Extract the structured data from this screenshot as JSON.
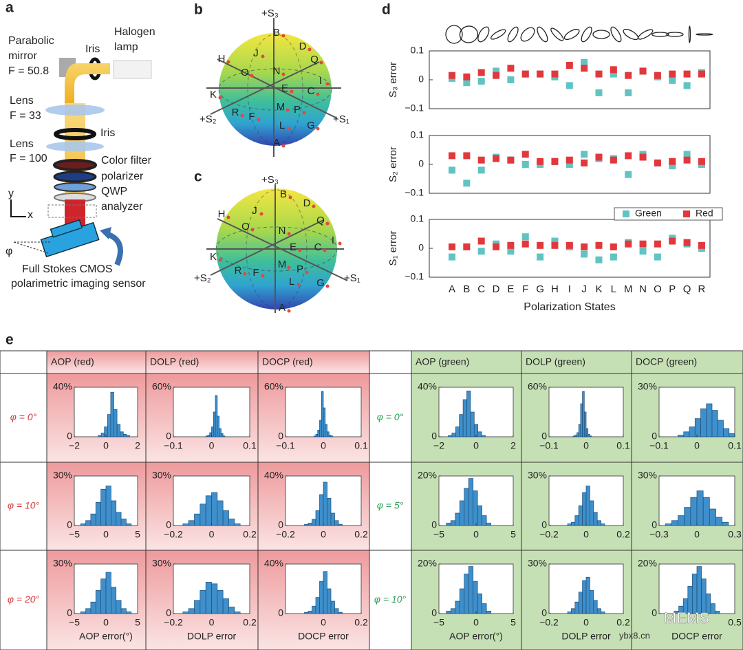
{
  "panel_labels": [
    "a",
    "b",
    "c",
    "d",
    "e"
  ],
  "setup": {
    "labels": [
      "Parabolic",
      "mirror",
      "F = 50.8",
      "Iris",
      "Halogen",
      "lamp",
      "Lens",
      "F = 33",
      "Iris",
      "Lens",
      "F = 100",
      "Color filter",
      "polarizer",
      "QWP",
      "analyzer",
      "y",
      "x",
      "φ",
      "Full Stokes CMOS",
      "polarimetric imaging sensor"
    ]
  },
  "sphere_b": {
    "axes": [
      "+S₃",
      "+S₂",
      "+S₁"
    ],
    "points": [
      "B",
      "D",
      "J",
      "H",
      "Q",
      "O",
      "N",
      "I",
      "K",
      "E",
      "C",
      "R",
      "M",
      "P",
      "F",
      "L",
      "G",
      "A"
    ]
  },
  "sphere_c": {
    "axes": [
      "+S₃",
      "+S₂",
      "+S₁"
    ],
    "points": [
      "B",
      "D",
      "J",
      "H",
      "Q",
      "O",
      "N",
      "I",
      "C",
      "E",
      "K",
      "M",
      "P",
      "R",
      "F",
      "L",
      "G",
      "A"
    ]
  },
  "table": {
    "headers": [
      "AOP (red)",
      "DOLP (red)",
      "DOCP (red)",
      "AOP (green)",
      "DOLP (green)",
      "DOCP (green)"
    ],
    "rows_red": [
      "φ = 0°",
      "φ = 10°",
      "φ = 20°"
    ],
    "rows_green": [
      "φ = 0°",
      "φ = 5°",
      "φ = 10°"
    ]
  },
  "watermark": [
    "MEMS",
    "ybx8.cn"
  ],
  "chart_data": [
    {
      "type": "dot",
      "ylabel": "S₃ error",
      "ylim": [
        -0.1,
        0.1
      ],
      "yticks": [
        0.1,
        0,
        {
          "value": -0.1,
          "label": "−0.1"
        }
      ],
      "series": [
        {
          "color": "#5fc4c2",
          "values": [
            0.005,
            -0.01,
            -0.005,
            0.03,
            0.0,
            0.02,
            0.02,
            0.01,
            -0.02,
            0.06,
            -0.045,
            0.02,
            -0.045,
            0.03,
            0.01,
            -0.002,
            -0.02,
            0.025
          ]
        },
        {
          "color": "#e2383c",
          "values": [
            0.015,
            0.01,
            0.025,
            0.015,
            0.04,
            0.02,
            0.02,
            0.02,
            0.05,
            0.04,
            0.02,
            0.035,
            0.015,
            0.03,
            0.015,
            0.02,
            0.02,
            0.02
          ]
        }
      ]
    },
    {
      "type": "dot",
      "ylabel": "S₂ error",
      "ylim": [
        -0.1,
        0.1
      ],
      "yticks": [
        0.1,
        0,
        {
          "value": -0.1,
          "label": "−0.1"
        }
      ],
      "series": [
        {
          "color": "#5fc4c2",
          "values": [
            -0.02,
            -0.065,
            -0.02,
            0.025,
            0.015,
            0.0,
            0.0,
            0.01,
            0.0,
            0.035,
            0.02,
            0.02,
            -0.035,
            0.035,
            0.005,
            -0.005,
            0.035,
            0.0
          ]
        },
        {
          "color": "#e2383c",
          "values": [
            0.03,
            0.03,
            0.015,
            0.02,
            0.015,
            0.035,
            0.01,
            0.01,
            0.015,
            0.005,
            0.025,
            0.015,
            0.03,
            0.025,
            0.005,
            0.01,
            0.015,
            0.01
          ]
        }
      ]
    },
    {
      "type": "dot",
      "ylabel": "S₁ error",
      "xlabel": "Polarization States",
      "legend": "upper right",
      "ylim": [
        -0.1,
        0.1
      ],
      "yticks": [
        0.1,
        0,
        {
          "value": -0.1,
          "label": "−0.1"
        }
      ],
      "categories": [
        "A",
        "B",
        "C",
        "D",
        "E",
        "F",
        "G",
        "H",
        "I",
        "J",
        "K",
        "L",
        "M",
        "N",
        "O",
        "P",
        "Q",
        "R"
      ],
      "series": [
        {
          "name": "Green",
          "color": "#5fc4c2",
          "values": [
            -0.03,
            0.005,
            -0.01,
            0.015,
            -0.01,
            0.04,
            -0.03,
            0.025,
            0.005,
            -0.02,
            -0.04,
            -0.03,
            0.02,
            -0.01,
            -0.03,
            0.035,
            0.015,
            0.0
          ]
        },
        {
          "name": "Red",
          "color": "#e2383c",
          "values": [
            0.005,
            0.005,
            0.025,
            0.005,
            0.01,
            0.015,
            0.01,
            0.01,
            0.01,
            0.005,
            0.01,
            0.005,
            0.015,
            0.015,
            0.015,
            0.025,
            0.02,
            0.01
          ]
        }
      ]
    },
    {
      "type": "histogram",
      "color": "#3f8fcb",
      "xlim": [
        -2,
        2
      ],
      "xticks": [
        {
          "value": -2,
          "label": "−2"
        },
        0,
        2
      ],
      "ylim": [
        0,
        40
      ],
      "yticks": [
        0,
        {
          "value": 40,
          "label": "40%"
        }
      ],
      "bins": [
        -0.5,
        -0.3,
        -0.1,
        0.1,
        0.3,
        0.5,
        0.7,
        0.9,
        1.1,
        1.3,
        1.5
      ],
      "values": [
        1,
        3,
        8,
        18,
        36,
        22,
        10,
        4,
        2,
        1
      ]
    },
    {
      "type": "histogram",
      "color": "#3f8fcb",
      "xlim": [
        -0.1,
        0.1
      ],
      "xticks": [
        {
          "value": -0.1,
          "label": "−0.1"
        },
        0,
        0.1
      ],
      "ylim": [
        0,
        60
      ],
      "yticks": [
        0,
        {
          "value": 60,
          "label": "60%"
        }
      ],
      "bins": [
        -0.015,
        -0.01,
        -0.005,
        0,
        0.005,
        0.01,
        0.015,
        0.02,
        0.025,
        0.03,
        0.035
      ],
      "values": [
        1,
        2,
        5,
        12,
        30,
        50,
        25,
        10,
        4,
        1
      ]
    },
    {
      "type": "histogram",
      "color": "#3f8fcb",
      "xlim": [
        -0.1,
        0.1
      ],
      "xticks": [
        {
          "value": -0.1,
          "label": "−0.1"
        },
        0,
        0.1
      ],
      "ylim": [
        0,
        60
      ],
      "yticks": [
        0,
        {
          "value": 60,
          "label": "60%"
        }
      ],
      "bins": [
        -0.025,
        -0.02,
        -0.015,
        -0.01,
        -0.005,
        0,
        0.005,
        0.01,
        0.015,
        0.02,
        0.025
      ],
      "values": [
        1,
        3,
        8,
        20,
        55,
        35,
        15,
        6,
        2,
        1
      ]
    },
    {
      "type": "histogram",
      "color": "#3f8fcb",
      "xlim": [
        -2,
        2
      ],
      "xticks": [
        {
          "value": -2,
          "label": "−2"
        },
        0,
        2
      ],
      "ylim": [
        0,
        40
      ],
      "yticks": [
        0,
        {
          "value": 40,
          "label": "40%"
        }
      ],
      "bins": [
        -1.5,
        -1.3,
        -1.1,
        -0.9,
        -0.7,
        -0.5,
        -0.3,
        -0.1,
        0.1,
        0.3,
        0.5
      ],
      "values": [
        1,
        3,
        8,
        18,
        30,
        37,
        20,
        10,
        4,
        1
      ]
    },
    {
      "type": "histogram",
      "color": "#3f8fcb",
      "xlim": [
        -0.1,
        0.1
      ],
      "xticks": [
        {
          "value": -0.1,
          "label": "−0.1"
        },
        0,
        0.1
      ],
      "ylim": [
        0,
        60
      ],
      "yticks": [
        0,
        {
          "value": 60,
          "label": "60%"
        }
      ],
      "bins": [
        -0.035,
        -0.03,
        -0.025,
        -0.02,
        -0.015,
        -0.01,
        -0.005,
        0,
        0.005,
        0.01,
        0.015
      ],
      "values": [
        1,
        2,
        5,
        15,
        40,
        55,
        30,
        10,
        3,
        1
      ]
    },
    {
      "type": "histogram",
      "color": "#3f8fcb",
      "xlim": [
        -0.1,
        0.1
      ],
      "xticks": [
        {
          "value": -0.1,
          "label": "−0.1"
        },
        0,
        0.1
      ],
      "ylim": [
        0,
        30
      ],
      "yticks": [
        0,
        {
          "value": 30,
          "label": "30%"
        }
      ],
      "bins": [
        -0.05,
        -0.035,
        -0.02,
        -0.005,
        0.01,
        0.025,
        0.04,
        0.055,
        0.07,
        0.085,
        0.1
      ],
      "values": [
        1,
        3,
        6,
        11,
        17,
        20,
        16,
        10,
        5,
        2
      ]
    },
    {
      "type": "histogram",
      "color": "#3f8fcb",
      "xlim": [
        -5,
        5
      ],
      "xticks": [
        {
          "value": -5,
          "label": "−5"
        },
        0,
        5
      ],
      "ylim": [
        0,
        30
      ],
      "yticks": [
        0,
        {
          "value": 30,
          "label": "30%"
        }
      ],
      "bins": [
        -4,
        -3.2,
        -2.4,
        -1.6,
        -0.8,
        0,
        0.8,
        1.6,
        2.4,
        3.2,
        4
      ],
      "values": [
        1,
        3,
        7,
        14,
        22,
        24,
        15,
        8,
        4,
        1
      ]
    },
    {
      "type": "histogram",
      "color": "#3f8fcb",
      "xlim": [
        -0.2,
        0.2
      ],
      "xticks": [
        {
          "value": -0.2,
          "label": "−0.2"
        },
        0,
        0.2
      ],
      "ylim": [
        0,
        30
      ],
      "yticks": [
        0,
        {
          "value": 30,
          "label": "30%"
        }
      ],
      "bins": [
        -0.15,
        -0.12,
        -0.09,
        -0.06,
        -0.03,
        0,
        0.03,
        0.06,
        0.09,
        0.12,
        0.15
      ],
      "values": [
        1,
        3,
        7,
        13,
        18,
        20,
        15,
        9,
        4,
        1
      ]
    },
    {
      "type": "histogram",
      "color": "#3f8fcb",
      "xlim": [
        -0.2,
        0.2
      ],
      "xticks": [
        {
          "value": -0.2,
          "label": "−0.2"
        },
        0,
        0.2
      ],
      "ylim": [
        0,
        40
      ],
      "yticks": [
        0,
        {
          "value": 40,
          "label": "40%"
        }
      ],
      "bins": [
        -0.1,
        -0.08,
        -0.06,
        -0.04,
        -0.02,
        0,
        0.02,
        0.04,
        0.06,
        0.08,
        0.1
      ],
      "values": [
        1,
        2,
        5,
        12,
        25,
        35,
        22,
        10,
        4,
        1
      ]
    },
    {
      "type": "histogram",
      "color": "#3f8fcb",
      "xlim": [
        -5,
        5
      ],
      "xticks": [
        {
          "value": -5,
          "label": "−5"
        },
        0,
        5
      ],
      "ylim": [
        0,
        20
      ],
      "yticks": [
        0,
        {
          "value": 20,
          "label": "20%"
        }
      ],
      "bins": [
        -4,
        -3.4,
        -2.8,
        -2.2,
        -1.6,
        -1,
        -0.4,
        0.2,
        0.8,
        1.4,
        2
      ],
      "values": [
        1,
        2,
        5,
        10,
        15,
        19,
        14,
        8,
        4,
        1
      ]
    },
    {
      "type": "histogram",
      "color": "#3f8fcb",
      "xlim": [
        -0.2,
        0.2
      ],
      "xticks": [
        {
          "value": -0.2,
          "label": "−0.2"
        },
        0,
        0.2
      ],
      "ylim": [
        0,
        30
      ],
      "yticks": [
        0,
        {
          "value": 30,
          "label": "30%"
        }
      ],
      "bins": [
        -0.1,
        -0.08,
        -0.06,
        -0.04,
        -0.02,
        0,
        0.02,
        0.04,
        0.06,
        0.08,
        0.1
      ],
      "values": [
        1,
        2,
        6,
        12,
        20,
        24,
        15,
        8,
        3,
        1
      ]
    },
    {
      "type": "histogram",
      "color": "#3f8fcb",
      "xlim": [
        -0.3,
        0.3
      ],
      "xticks": [
        {
          "value": -0.3,
          "label": "−0.3"
        },
        0,
        0.3
      ],
      "ylim": [
        0,
        30
      ],
      "yticks": [
        0,
        {
          "value": 30,
          "label": "30%"
        }
      ],
      "bins": [
        -0.25,
        -0.2,
        -0.15,
        -0.1,
        -0.05,
        0,
        0.05,
        0.1,
        0.15,
        0.2,
        0.25
      ],
      "values": [
        1,
        3,
        6,
        11,
        17,
        21,
        17,
        10,
        5,
        2
      ]
    },
    {
      "type": "histogram",
      "color": "#3f8fcb",
      "xlabel": "AOP error(°)",
      "xlim": [
        -5,
        5
      ],
      "xticks": [
        {
          "value": -5,
          "label": "−5"
        },
        0,
        5
      ],
      "ylim": [
        0,
        30
      ],
      "yticks": [
        0,
        {
          "value": 30,
          "label": "30%"
        }
      ],
      "bins": [
        -4,
        -3.2,
        -2.4,
        -1.6,
        -0.8,
        0,
        0.8,
        1.6,
        2.4,
        3.2,
        4
      ],
      "values": [
        1,
        3,
        7,
        14,
        21,
        25,
        16,
        8,
        3,
        1
      ]
    },
    {
      "type": "histogram",
      "color": "#3f8fcb",
      "xlabel": "DOLP error",
      "xlim": [
        -0.2,
        0.2
      ],
      "xticks": [
        {
          "value": -0.2,
          "label": "−0.2"
        },
        0,
        0.2
      ],
      "ylim": [
        0,
        30
      ],
      "yticks": [
        0,
        {
          "value": 30,
          "label": "30%"
        }
      ],
      "bins": [
        -0.15,
        -0.12,
        -0.09,
        -0.06,
        -0.03,
        0,
        0.03,
        0.06,
        0.09,
        0.12,
        0.15
      ],
      "values": [
        1,
        3,
        8,
        14,
        19,
        18,
        14,
        9,
        4,
        1
      ]
    },
    {
      "type": "histogram",
      "color": "#3f8fcb",
      "xlabel": "DOCP error",
      "xlim": [
        -0.2,
        0.2
      ],
      "xticks": [
        0,
        0.2
      ],
      "ylim": [
        0,
        40
      ],
      "yticks": [
        0,
        {
          "value": 40,
          "label": "40%"
        }
      ],
      "bins": [
        -0.1,
        -0.08,
        -0.06,
        -0.04,
        -0.02,
        0,
        0.02,
        0.04,
        0.06,
        0.08,
        0.1
      ],
      "values": [
        1,
        2,
        6,
        13,
        26,
        34,
        20,
        10,
        4,
        1
      ]
    },
    {
      "type": "histogram",
      "color": "#3f8fcb",
      "xlabel": "AOP error(°)",
      "xlim": [
        -5,
        5
      ],
      "xticks": [
        {
          "value": -5,
          "label": "−5"
        },
        0,
        5
      ],
      "ylim": [
        0,
        20
      ],
      "yticks": [
        0,
        {
          "value": 20,
          "label": "20%"
        }
      ],
      "bins": [
        -4,
        -3.4,
        -2.8,
        -2.2,
        -1.6,
        -1,
        -0.4,
        0.2,
        0.8,
        1.4,
        2
      ],
      "values": [
        1,
        2,
        5,
        10,
        16,
        19,
        13,
        8,
        4,
        1
      ]
    },
    {
      "type": "histogram",
      "color": "#3f8fcb",
      "xlabel": "DOLP error",
      "xlim": [
        -0.2,
        0.2
      ],
      "xticks": [
        {
          "value": -0.2,
          "label": "−0.2"
        },
        0,
        0.2
      ],
      "ylim": [
        0,
        30
      ],
      "yticks": [
        0,
        {
          "value": 30,
          "label": "30%"
        }
      ],
      "bins": [
        -0.1,
        -0.08,
        -0.06,
        -0.04,
        -0.02,
        0,
        0.02,
        0.04,
        0.06,
        0.08,
        0.1
      ],
      "values": [
        1,
        3,
        7,
        13,
        20,
        22,
        14,
        8,
        3,
        1
      ]
    },
    {
      "type": "histogram",
      "color": "#3f8fcb",
      "xlabel": "DOCP error",
      "xlim": [
        -0.5,
        0.5
      ],
      "xticks": [
        0.5
      ],
      "ylim": [
        0,
        20
      ],
      "yticks": [
        0,
        {
          "value": 20,
          "label": "20%"
        }
      ],
      "bins": [
        -0.3,
        -0.24,
        -0.18,
        -0.12,
        -0.06,
        0,
        0.06,
        0.12,
        0.18,
        0.24,
        0.3
      ],
      "values": [
        1,
        3,
        6,
        11,
        16,
        19,
        14,
        8,
        4,
        1
      ]
    }
  ]
}
